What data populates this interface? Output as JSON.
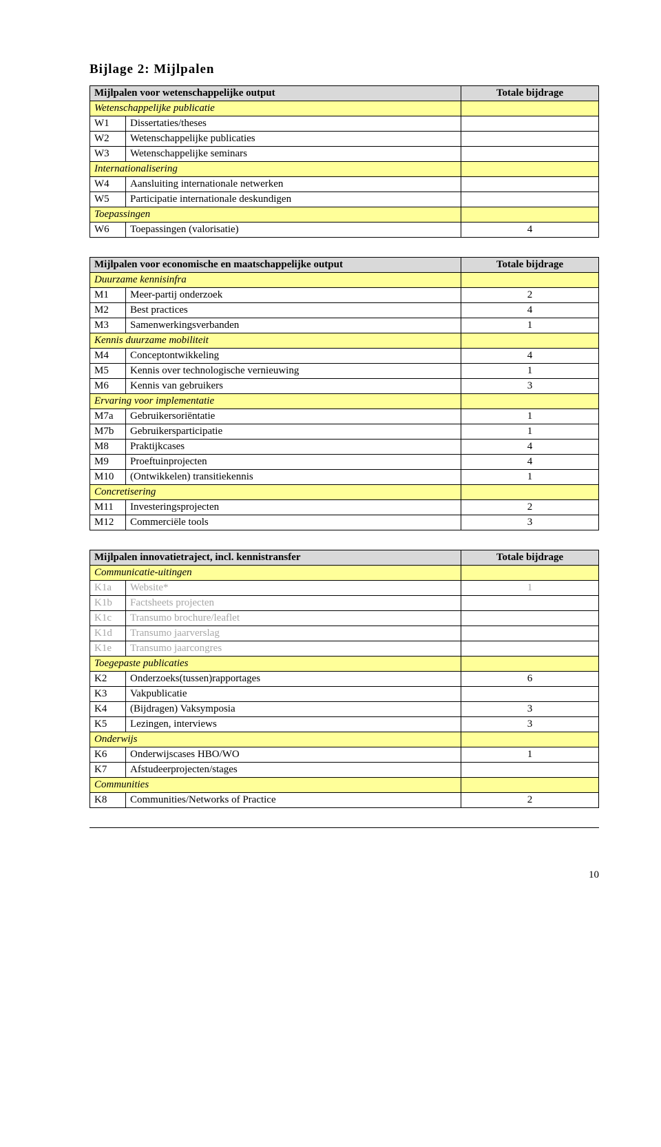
{
  "page": {
    "title": "Bijlage 2: Mijlpalen",
    "number": "10"
  },
  "colors": {
    "header_bg": "#d9d9d9",
    "section_bg": "#ffff99",
    "grey_text": "#a6a6a6"
  },
  "table1": {
    "header": {
      "title": "Mijlpalen voor wetenschappelijke output",
      "col2": "Totale bijdrage"
    },
    "sections": [
      {
        "label": "Wetenschappelijke publicatie",
        "rows": [
          {
            "code": "W1",
            "label": "Dissertaties/theses",
            "val": ""
          },
          {
            "code": "W2",
            "label": "Wetenschappelijke publicaties",
            "val": ""
          },
          {
            "code": "W3",
            "label": "Wetenschappelijke seminars",
            "val": ""
          }
        ]
      },
      {
        "label": "Internationalisering",
        "rows": [
          {
            "code": "W4",
            "label": "Aansluiting internationale netwerken",
            "val": ""
          },
          {
            "code": "W5",
            "label": "Participatie internationale deskundigen",
            "val": ""
          }
        ]
      },
      {
        "label": "Toepassingen",
        "rows": [
          {
            "code": "W6",
            "label": "Toepassingen (valorisatie)",
            "val": "4"
          }
        ]
      }
    ]
  },
  "table2": {
    "header": {
      "title": "Mijlpalen voor economische en maatschappelijke output",
      "col2": "Totale bijdrage"
    },
    "sections": [
      {
        "label": "Duurzame kennisinfra",
        "rows": [
          {
            "code": "M1",
            "label": "Meer-partij onderzoek",
            "val": "2"
          },
          {
            "code": "M2",
            "label": "Best practices",
            "val": "4"
          },
          {
            "code": "M3",
            "label": "Samenwerkingsverbanden",
            "val": "1"
          }
        ]
      },
      {
        "label": "Kennis duurzame mobiliteit",
        "rows": [
          {
            "code": "M4",
            "label": "Conceptontwikkeling",
            "val": "4"
          },
          {
            "code": "M5",
            "label": "Kennis over technologische vernieuwing",
            "val": "1"
          },
          {
            "code": "M6",
            "label": "Kennis van gebruikers",
            "val": "3"
          }
        ]
      },
      {
        "label": "Ervaring voor implementatie",
        "rows": [
          {
            "code": "M7a",
            "label": "Gebruikersoriëntatie",
            "val": "1"
          },
          {
            "code": "M7b",
            "label": "Gebruikersparticipatie",
            "val": "1"
          },
          {
            "code": "M8",
            "label": "Praktijkcases",
            "val": "4"
          },
          {
            "code": "M9",
            "label": "Proeftuinprojecten",
            "val": "4"
          },
          {
            "code": "M10",
            "label": "(Ontwikkelen) transitiekennis",
            "val": "1"
          }
        ]
      },
      {
        "label": "Concretisering",
        "rows": [
          {
            "code": "M11",
            "label": "Investeringsprojecten",
            "val": "2"
          },
          {
            "code": "M12",
            "label": "Commerciële tools",
            "val": "3"
          }
        ]
      }
    ]
  },
  "table3": {
    "header": {
      "title": "Mijlpalen innovatietraject, incl. kennistransfer",
      "col2": "Totale bijdrage"
    },
    "sections": [
      {
        "label": "Communicatie-uitingen",
        "rows": [
          {
            "code": "K1a",
            "label": "Website*",
            "val": "1",
            "grey": true
          },
          {
            "code": "K1b",
            "label": "Factsheets projecten",
            "val": "",
            "grey": true
          },
          {
            "code": "K1c",
            "label": "Transumo brochure/leaflet",
            "val": "",
            "grey": true
          },
          {
            "code": "K1d",
            "label": "Transumo jaarverslag",
            "val": "",
            "grey": true
          },
          {
            "code": "K1e",
            "label": "Transumo jaarcongres",
            "val": "",
            "grey": true
          }
        ]
      },
      {
        "label": "Toegepaste publicaties",
        "rows": [
          {
            "code": "K2",
            "label": "Onderzoeks(tussen)rapportages",
            "val": "6"
          },
          {
            "code": "K3",
            "label": "Vakpublicatie",
            "val": ""
          },
          {
            "code": "K4",
            "label": "(Bijdragen) Vaksymposia",
            "val": "3"
          },
          {
            "code": "K5",
            "label": "Lezingen, interviews",
            "val": "3"
          }
        ]
      },
      {
        "label": "Onderwijs",
        "rows": [
          {
            "code": "K6",
            "label": "Onderwijscases HBO/WO",
            "val": "1"
          },
          {
            "code": "K7",
            "label": "Afstudeerprojecten/stages",
            "val": ""
          }
        ]
      },
      {
        "label": "Communities",
        "rows": [
          {
            "code": "K8",
            "label": "Communities/Networks of Practice",
            "val": "2"
          }
        ]
      }
    ]
  }
}
